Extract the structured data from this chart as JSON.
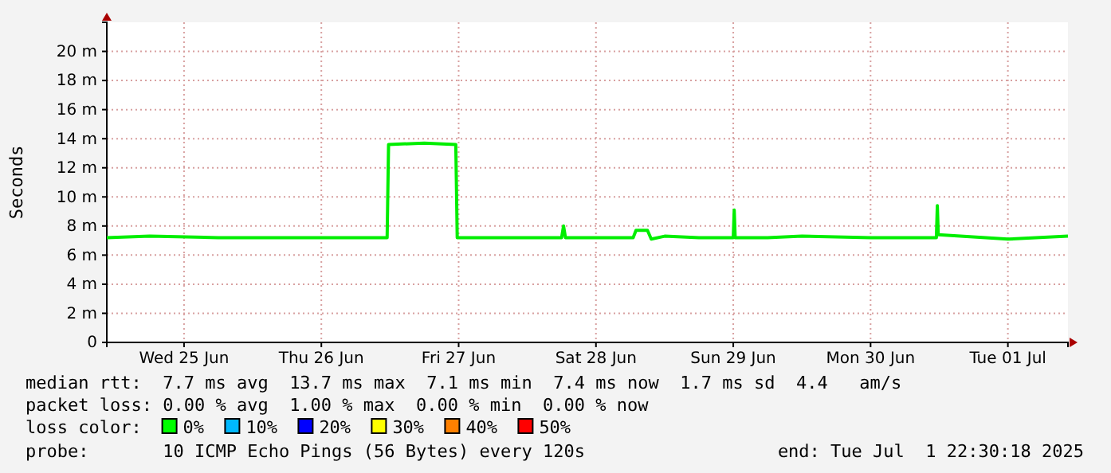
{
  "chart_data": {
    "type": "line",
    "ylabel": "Seconds",
    "x": [
      "2025-06-24T22:30",
      "2025-06-25T06:00",
      "2025-06-25T18:00",
      "2025-06-26T12:00",
      "2025-06-26T23:30",
      "2025-06-26T23:45",
      "2025-06-27T06:00",
      "2025-06-27T11:30",
      "2025-06-27T11:45",
      "2025-06-27T18:00",
      "2025-06-28T06:00",
      "2025-06-28T06:20",
      "2025-06-28T06:40",
      "2025-06-28T18:30",
      "2025-06-28T19:00",
      "2025-06-28T21:00",
      "2025-06-28T21:40",
      "2025-06-29T00:00",
      "2025-06-29T06:00",
      "2025-06-29T12:00",
      "2025-06-29T12:10",
      "2025-06-29T12:20",
      "2025-06-29T18:00",
      "2025-06-30T00:00",
      "2025-06-30T12:00",
      "2025-06-30T23:30",
      "2025-06-30T23:40",
      "2025-06-30T23:50",
      "2025-07-01T12:00",
      "2025-07-01T22:30"
    ],
    "series": [
      {
        "color": "#00ee00",
        "values": [
          7.2,
          7.3,
          7.2,
          7.2,
          7.2,
          13.6,
          13.7,
          13.6,
          7.2,
          7.2,
          7.2,
          8.0,
          7.2,
          7.2,
          7.7,
          7.7,
          7.1,
          7.3,
          7.2,
          7.2,
          9.1,
          7.2,
          7.2,
          7.3,
          7.2,
          7.2,
          9.4,
          7.4,
          7.1,
          7.3
        ]
      }
    ],
    "xlim": [
      "2025-06-24T22:30",
      "2025-07-01T22:30"
    ],
    "xticks": [
      {
        "value": "2025-06-25T12:00",
        "label": "Wed 25 Jun"
      },
      {
        "value": "2025-06-26T12:00",
        "label": "Thu 26 Jun"
      },
      {
        "value": "2025-06-27T12:00",
        "label": "Fri 27 Jun"
      },
      {
        "value": "2025-06-28T12:00",
        "label": "Sat 28 Jun"
      },
      {
        "value": "2025-06-29T12:00",
        "label": "Sun 29 Jun"
      },
      {
        "value": "2025-06-30T12:00",
        "label": "Mon 30 Jun"
      },
      {
        "value": "2025-07-01T12:00",
        "label": "Tue 01 Jul"
      }
    ],
    "ylim": [
      0,
      22
    ],
    "yticks": [
      0,
      {
        "value": 2,
        "label": "2 m"
      },
      {
        "value": 4,
        "label": "4 m"
      },
      {
        "value": 6,
        "label": "6 m"
      },
      {
        "value": 8,
        "label": "8 m"
      },
      {
        "value": 10,
        "label": "10 m"
      },
      {
        "value": 12,
        "label": "12 m"
      },
      {
        "value": 14,
        "label": "14 m"
      },
      {
        "value": 16,
        "label": "16 m"
      },
      {
        "value": 18,
        "label": "18 m"
      },
      {
        "value": 20,
        "label": "20 m"
      }
    ],
    "grid": true,
    "annotations": [
      "median rtt:  7.7 ms avg  13.7 ms max  7.1 ms min  7.4 ms now  1.7 ms sd  4.4   am/s",
      "packet loss: 0.00 % avg  1.00 % max  0.00 % min  0.00 % now",
      "loss color:  ",
      "0%",
      "10%",
      "20%",
      "30%",
      "40%",
      "50%",
      "probe:       10 ICMP Echo Pings (56 Bytes) every 120s",
      "end: Tue Jul  1 22:30:18 2025"
    ]
  }
}
